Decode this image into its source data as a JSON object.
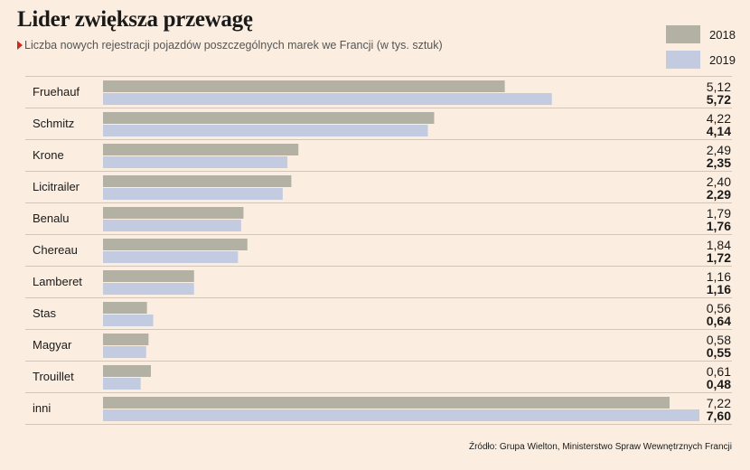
{
  "title": "Lider zwiększa przewagę",
  "subtitle": "Liczba nowych rejestracji pojazdów poszczególnych marek we Francji (w tys. sztuk)",
  "source": "Źródło: Grupa Wielton, Ministerstwo Spraw Wewnętrznych Francji",
  "colors": {
    "s2018": "#b3b1a4",
    "s2019": "#c3cbe0",
    "accent": "#d0291d",
    "divider": "#d2c6b8"
  },
  "chart_data": {
    "type": "bar",
    "orientation": "horizontal",
    "categories": [
      "Fruehauf",
      "Schmitz",
      "Krone",
      "Licitrailer",
      "Benalu",
      "Chereau",
      "Lamberet",
      "Stas",
      "Magyar",
      "Trouillet",
      "inni"
    ],
    "series": [
      {
        "name": "2018",
        "values": [
          5.12,
          4.22,
          2.49,
          2.4,
          1.79,
          1.84,
          1.16,
          0.56,
          0.58,
          0.61,
          7.22
        ],
        "labels": [
          "5,12",
          "4,22",
          "2,49",
          "2,40",
          "1,79",
          "1,84",
          "1,16",
          "0,56",
          "0,58",
          "0,61",
          "7,22"
        ]
      },
      {
        "name": "2019",
        "values": [
          5.72,
          4.14,
          2.35,
          2.29,
          1.76,
          1.72,
          1.16,
          0.64,
          0.55,
          0.48,
          7.6
        ],
        "labels": [
          "5,72",
          "4,14",
          "2,35",
          "2,29",
          "1,76",
          "1,72",
          "1,16",
          "0,64",
          "0,55",
          "0,48",
          "7,60"
        ]
      }
    ],
    "xlim": [
      0,
      7.6
    ],
    "legend": "top-right",
    "grid": false
  }
}
